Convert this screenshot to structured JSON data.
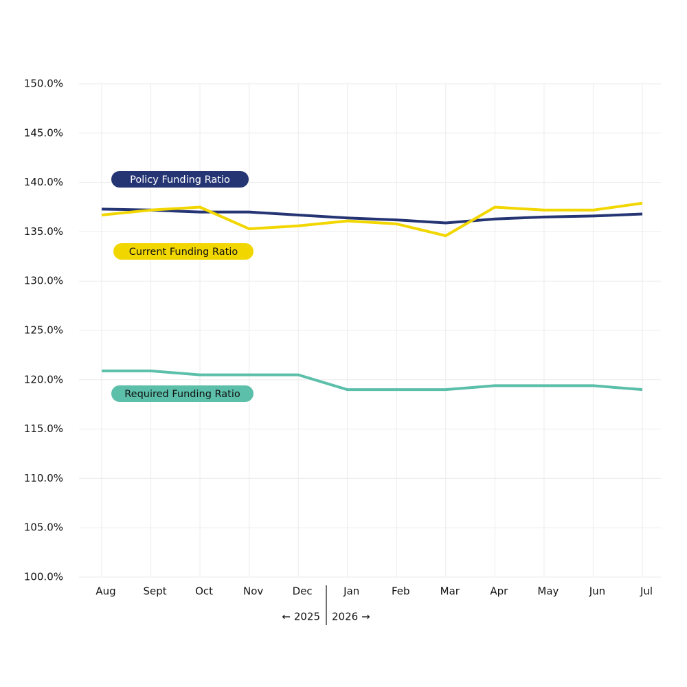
{
  "chart_data": {
    "type": "line",
    "categories": [
      "Aug",
      "Sept",
      "Oct",
      "Nov",
      "Dec",
      "Jan",
      "Feb",
      "Mar",
      "Apr",
      "May",
      "Jun",
      "Jul"
    ],
    "series": [
      {
        "name": "Policy Funding Ratio",
        "color": "#253574",
        "values": [
          137.3,
          137.2,
          137.0,
          137.0,
          136.7,
          136.4,
          136.2,
          135.9,
          136.3,
          136.5,
          136.6,
          136.8
        ]
      },
      {
        "name": "Current Funding Ratio",
        "color": "#f2d600",
        "values": [
          136.7,
          137.2,
          137.5,
          135.3,
          135.6,
          136.1,
          135.8,
          134.6,
          137.5,
          137.2,
          137.2,
          137.9
        ]
      },
      {
        "name": "Required Funding Ratio",
        "color": "#5bbfaa",
        "values": [
          120.9,
          120.9,
          120.5,
          120.5,
          120.5,
          119.0,
          119.0,
          119.0,
          119.4,
          119.4,
          119.4,
          119.0
        ]
      }
    ],
    "ylim": [
      100,
      150
    ],
    "yticks": [
      {
        "value": 100,
        "label": "100.0%"
      },
      {
        "value": 105,
        "label": "105.0%"
      },
      {
        "value": 110,
        "label": "110.0%"
      },
      {
        "value": 115,
        "label": "115.0%"
      },
      {
        "value": 120,
        "label": "120.0%"
      },
      {
        "value": 125,
        "label": "125.0%"
      },
      {
        "value": 130,
        "label": "130.0%"
      },
      {
        "value": 135,
        "label": "135.0%"
      },
      {
        "value": 140,
        "label": "140.0%"
      },
      {
        "value": 145,
        "label": "145.0%"
      },
      {
        "value": 150,
        "label": "150.0%"
      }
    ],
    "annotations": [
      "← 2025",
      "2026 →"
    ],
    "grid": true
  }
}
